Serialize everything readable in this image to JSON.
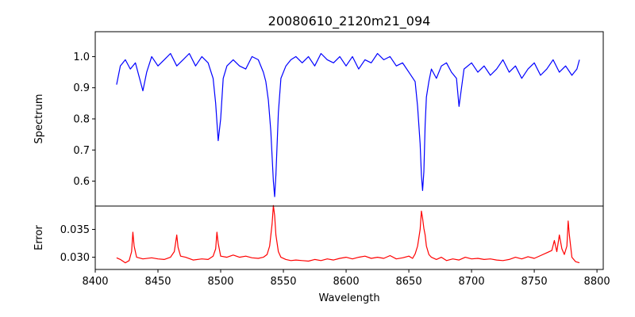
{
  "chart_data": {
    "type": "line",
    "title": "20080610_2120m21_094",
    "xlabel": "Wavelength",
    "xlim": [
      8400,
      8805
    ],
    "xticks": [
      8400,
      8450,
      8500,
      8550,
      8600,
      8650,
      8700,
      8750,
      8800
    ],
    "panels": [
      {
        "ylabel": "Spectrum",
        "ylim": [
          0.52,
          1.08
        ],
        "yticks": [
          0.6,
          0.7,
          0.8,
          0.9,
          1.0
        ],
        "ytick_labels": [
          "0.6",
          "0.7",
          "0.8",
          "0.9",
          "1.0"
        ],
        "color": "#0000ff",
        "x": [
          8417,
          8420,
          8424,
          8428,
          8432,
          8436,
          8438,
          8441,
          8445,
          8450,
          8455,
          8460,
          8465,
          8470,
          8475,
          8480,
          8485,
          8490,
          8494,
          8496,
          8498,
          8500,
          8502,
          8505,
          8510,
          8515,
          8520,
          8525,
          8530,
          8534,
          8536,
          8538,
          8540,
          8541,
          8542,
          8543,
          8544,
          8546,
          8548,
          8552,
          8556,
          8560,
          8565,
          8570,
          8575,
          8580,
          8585,
          8590,
          8595,
          8600,
          8605,
          8610,
          8615,
          8620,
          8625,
          8630,
          8635,
          8640,
          8645,
          8650,
          8655,
          8657,
          8659,
          8660,
          8661,
          8662,
          8663,
          8664,
          8666,
          8668,
          8672,
          8676,
          8680,
          8684,
          8688,
          8690,
          8694,
          8700,
          8705,
          8710,
          8715,
          8720,
          8725,
          8730,
          8735,
          8740,
          8745,
          8750,
          8755,
          8760,
          8765,
          8770,
          8775,
          8780,
          8784,
          8786
        ],
        "values": [
          0.91,
          0.97,
          0.99,
          0.96,
          0.98,
          0.92,
          0.89,
          0.95,
          1.0,
          0.97,
          0.99,
          1.01,
          0.97,
          0.99,
          1.01,
          0.97,
          1.0,
          0.98,
          0.93,
          0.85,
          0.73,
          0.8,
          0.93,
          0.97,
          0.99,
          0.97,
          0.96,
          1.0,
          0.99,
          0.95,
          0.92,
          0.86,
          0.76,
          0.68,
          0.6,
          0.55,
          0.62,
          0.82,
          0.93,
          0.97,
          0.99,
          1.0,
          0.98,
          1.0,
          0.97,
          1.01,
          0.99,
          0.98,
          1.0,
          0.97,
          1.0,
          0.96,
          0.99,
          0.98,
          1.01,
          0.99,
          1.0,
          0.97,
          0.98,
          0.95,
          0.92,
          0.84,
          0.72,
          0.62,
          0.57,
          0.63,
          0.78,
          0.87,
          0.92,
          0.96,
          0.93,
          0.97,
          0.98,
          0.95,
          0.93,
          0.84,
          0.96,
          0.98,
          0.95,
          0.97,
          0.94,
          0.96,
          0.99,
          0.95,
          0.97,
          0.93,
          0.96,
          0.98,
          0.94,
          0.96,
          0.99,
          0.95,
          0.97,
          0.94,
          0.96,
          0.99
        ]
      },
      {
        "ylabel": "Error",
        "ylim": [
          0.0278,
          0.0392
        ],
        "yticks": [
          0.03,
          0.035
        ],
        "ytick_labels": [
          "0.030",
          "0.035"
        ],
        "color": "#ff0000",
        "x": [
          8417,
          8420,
          8424,
          8427,
          8429,
          8430,
          8431,
          8433,
          8438,
          8445,
          8450,
          8455,
          8460,
          8463,
          8465,
          8466,
          8468,
          8472,
          8478,
          8485,
          8490,
          8494,
          8496,
          8497,
          8498,
          8500,
          8505,
          8510,
          8515,
          8520,
          8525,
          8530,
          8534,
          8537,
          8539,
          8541,
          8542,
          8543,
          8544,
          8546,
          8548,
          8552,
          8556,
          8560,
          8565,
          8570,
          8575,
          8580,
          8585,
          8590,
          8595,
          8600,
          8605,
          8610,
          8615,
          8620,
          8625,
          8630,
          8635,
          8640,
          8645,
          8650,
          8653,
          8655,
          8657,
          8659,
          8660,
          8661,
          8662,
          8663,
          8664,
          8666,
          8668,
          8672,
          8676,
          8680,
          8685,
          8690,
          8695,
          8700,
          8705,
          8710,
          8715,
          8720,
          8725,
          8730,
          8735,
          8740,
          8745,
          8750,
          8755,
          8760,
          8764,
          8766,
          8768,
          8770,
          8772,
          8774,
          8776,
          8777,
          8778,
          8780,
          8783,
          8786
        ],
        "values": [
          0.0299,
          0.0296,
          0.029,
          0.0294,
          0.031,
          0.0345,
          0.032,
          0.03,
          0.0297,
          0.0299,
          0.0297,
          0.0296,
          0.03,
          0.031,
          0.034,
          0.0318,
          0.0302,
          0.03,
          0.0295,
          0.0297,
          0.0296,
          0.0302,
          0.0315,
          0.0345,
          0.0325,
          0.0302,
          0.03,
          0.0304,
          0.03,
          0.0302,
          0.0299,
          0.0298,
          0.03,
          0.0305,
          0.032,
          0.036,
          0.0393,
          0.0375,
          0.034,
          0.031,
          0.03,
          0.0296,
          0.0294,
          0.0295,
          0.0294,
          0.0293,
          0.0296,
          0.0294,
          0.0297,
          0.0295,
          0.0298,
          0.03,
          0.0297,
          0.03,
          0.0302,
          0.0298,
          0.03,
          0.0298,
          0.0303,
          0.0297,
          0.0299,
          0.0302,
          0.0298,
          0.0306,
          0.032,
          0.035,
          0.0383,
          0.037,
          0.0352,
          0.034,
          0.032,
          0.0305,
          0.03,
          0.0296,
          0.03,
          0.0294,
          0.0297,
          0.0295,
          0.03,
          0.0297,
          0.0298,
          0.0296,
          0.0297,
          0.0295,
          0.0294,
          0.0296,
          0.03,
          0.0297,
          0.0301,
          0.0298,
          0.0303,
          0.0308,
          0.0312,
          0.033,
          0.031,
          0.034,
          0.0315,
          0.0305,
          0.032,
          0.0365,
          0.034,
          0.03,
          0.0292,
          0.029
        ]
      }
    ]
  }
}
